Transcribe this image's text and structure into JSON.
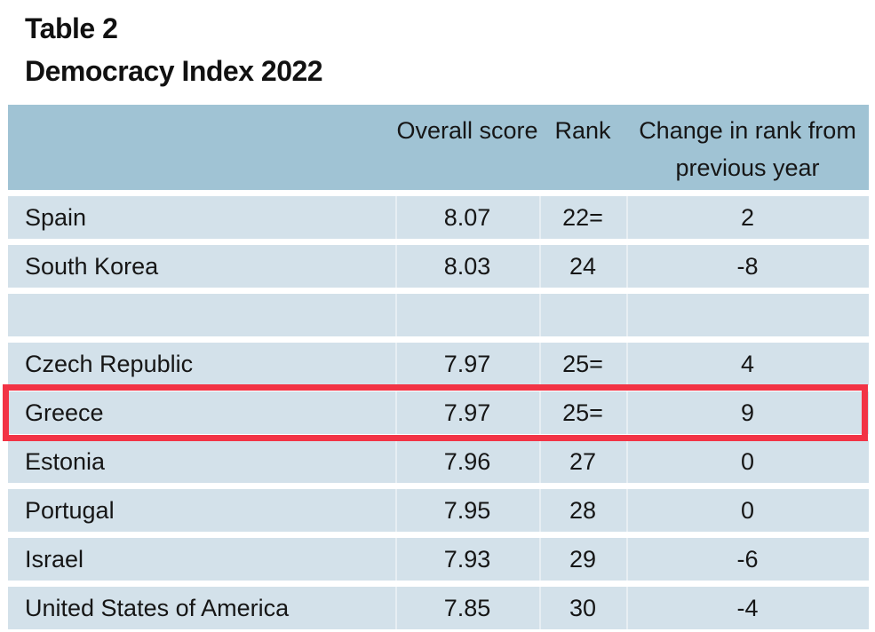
{
  "header": {
    "table_label": "Table 2",
    "title": "Democracy Index 2022"
  },
  "table": {
    "columns": [
      "",
      "Overall score",
      "Rank",
      "Change in rank from previous year"
    ],
    "rows": [
      {
        "country": "Spain",
        "score": "8.07",
        "rank": "22=",
        "change": "2"
      },
      {
        "country": "South Korea",
        "score": "8.03",
        "rank": "24",
        "change": "-8"
      },
      {
        "country": "",
        "score": "",
        "rank": "",
        "change": ""
      },
      {
        "country": "Czech Republic",
        "score": "7.97",
        "rank": "25=",
        "change": "4"
      },
      {
        "country": "Greece",
        "score": "7.97",
        "rank": "25=",
        "change": "9"
      },
      {
        "country": "Estonia",
        "score": "7.96",
        "rank": "27",
        "change": "0"
      },
      {
        "country": "Portugal",
        "score": "7.95",
        "rank": "28",
        "change": "0"
      },
      {
        "country": "Israel",
        "score": "7.93",
        "rank": "29",
        "change": "-6"
      },
      {
        "country": "United States of America",
        "score": "7.85",
        "rank": "30",
        "change": "-4"
      }
    ],
    "highlighted_country": "Greece"
  },
  "colors": {
    "header_bg": "#a0c3d4",
    "row_bg": "#d3e1ea",
    "highlight_border": "#f23345",
    "text": "#161616"
  }
}
